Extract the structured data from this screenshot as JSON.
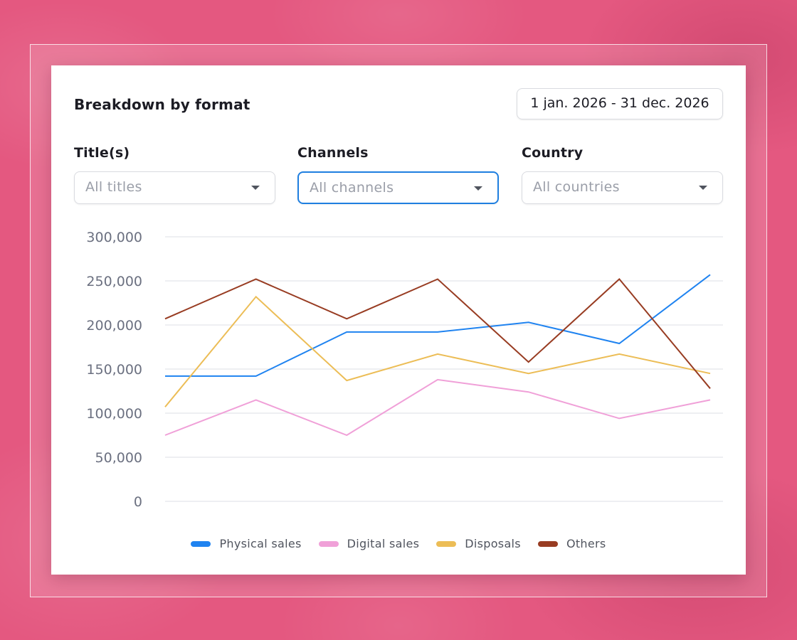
{
  "card": {
    "title": "Breakdown by format",
    "date_range": "1 jan. 2026 - 31 dec. 2026"
  },
  "filters": [
    {
      "label": "Title(s)",
      "value": "All titles",
      "active": false
    },
    {
      "label": "Channels",
      "value": "All channels",
      "active": true
    },
    {
      "label": "Country",
      "value": "All countries",
      "active": false
    }
  ],
  "colors": {
    "accent": "#1f7fe0",
    "background": "#e45880",
    "gridline": "#e9eaee"
  },
  "icons": {
    "select_caret": "caret-down-icon"
  },
  "chart_data": {
    "type": "line",
    "title": "",
    "xlabel": "",
    "ylabel": "",
    "y_ticks": [
      "0",
      "50,000",
      "100,000",
      "150,000",
      "200,000",
      "250,000",
      "300,000"
    ],
    "ylim": [
      0,
      300000
    ],
    "grid": true,
    "legend_position": "bottom",
    "x": [
      1,
      2,
      3,
      4,
      5,
      6,
      7
    ],
    "series": [
      {
        "name": "Physical sales",
        "color": "#1f83f0",
        "values": [
          142000,
          142000,
          192000,
          192000,
          203000,
          179000,
          257000
        ]
      },
      {
        "name": "Digital sales",
        "color": "#f0a0d8",
        "values": [
          75000,
          115000,
          75000,
          138000,
          124000,
          94000,
          115000
        ]
      },
      {
        "name": "Disposals",
        "color": "#ecbd56",
        "values": [
          107000,
          232000,
          137000,
          167000,
          145000,
          167000,
          145000
        ]
      },
      {
        "name": "Others",
        "color": "#983c22",
        "values": [
          207000,
          252000,
          207000,
          252000,
          158000,
          252000,
          128000
        ]
      }
    ]
  }
}
